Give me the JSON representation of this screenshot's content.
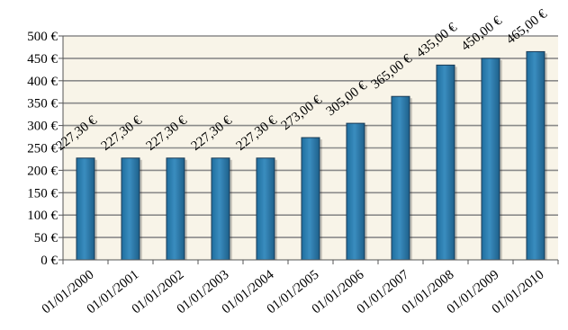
{
  "chart_data": {
    "type": "bar",
    "categories": [
      "01/01/2000",
      "01/01/2001",
      "01/01/2002",
      "01/01/2003",
      "01/01/2004",
      "01/01/2005",
      "01/01/2006",
      "01/01/2007",
      "01/01/2008",
      "01/01/2009",
      "01/01/2010"
    ],
    "values": [
      227.3,
      227.3,
      227.3,
      227.3,
      227.3,
      273.0,
      305.0,
      365.0,
      435.0,
      450.0,
      465.0
    ],
    "value_labels": [
      "227,30 €",
      "227,30 €",
      "227,30 €",
      "227,30 €",
      "227,30 €",
      "273,00 €",
      "305,00 €",
      "365,00 €",
      "435,00 €",
      "450,00 €",
      "465,00 €"
    ],
    "y_ticks": [
      0,
      50,
      100,
      150,
      200,
      250,
      300,
      350,
      400,
      450,
      500
    ],
    "y_tick_labels": [
      "0 €",
      "50 €",
      "100 €",
      "150 €",
      "200 €",
      "250 €",
      "300 €",
      "350 €",
      "400 €",
      "450 €",
      "500 €"
    ],
    "ylim": [
      0,
      500
    ],
    "title": "",
    "xlabel": "",
    "ylabel": "",
    "grid": true,
    "colors": {
      "bar": "#2878a8",
      "bar_edge": "#1a3a55",
      "plot_bg": "#f8f4e8",
      "grid": "#8a8a8a",
      "axis": "#555555"
    }
  }
}
